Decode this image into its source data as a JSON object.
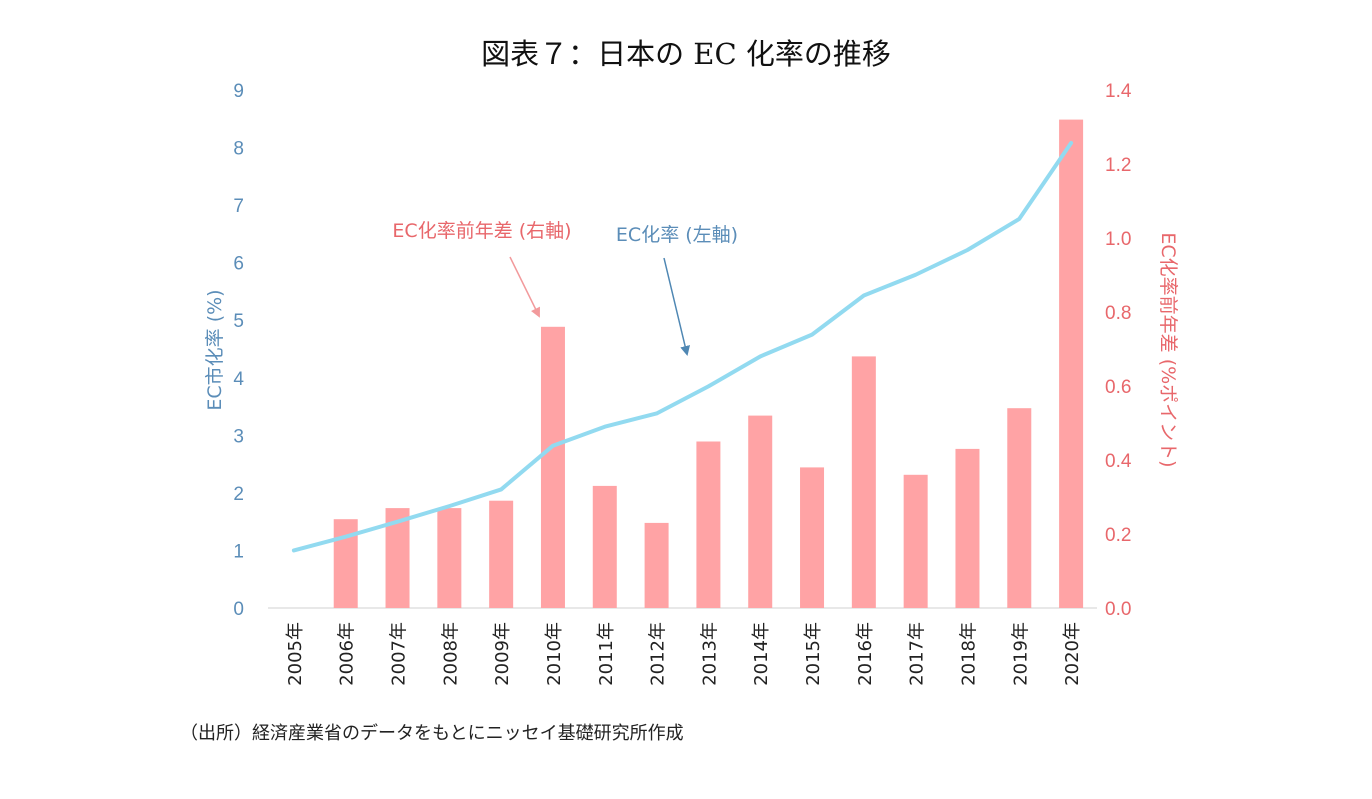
{
  "chart_data": {
    "type": "bar+line",
    "title": "図表７：日本の EC 化率の推移",
    "categories": [
      "2005年",
      "2006年",
      "2007年",
      "2008年",
      "2009年",
      "2010年",
      "2011年",
      "2012年",
      "2013年",
      "2014年",
      "2015年",
      "2016年",
      "2017年",
      "2018年",
      "2019年",
      "2020年"
    ],
    "series": [
      {
        "name": "EC化率前年差 (右軸)",
        "kind": "bar",
        "axis": "right",
        "color": "#ffa3a5",
        "values": [
          null,
          0.24,
          0.27,
          0.27,
          0.29,
          0.76,
          0.33,
          0.23,
          0.45,
          0.52,
          0.38,
          0.68,
          0.36,
          0.43,
          0.54,
          1.32
        ]
      },
      {
        "name": "EC化率 (左軸)",
        "kind": "line",
        "axis": "left",
        "color": "#92daf0",
        "values": [
          1.0,
          1.24,
          1.5,
          1.77,
          2.06,
          2.82,
          3.15,
          3.38,
          3.85,
          4.37,
          4.75,
          5.43,
          5.79,
          6.22,
          6.76,
          8.08
        ]
      }
    ],
    "y_left": {
      "label": "EC市化率 (%)",
      "ylim": [
        0,
        9
      ],
      "ticks": [
        "0",
        "1",
        "2",
        "3",
        "4",
        "5",
        "6",
        "7",
        "8",
        "9"
      ],
      "color": "#5b8db8"
    },
    "y_right": {
      "label": "EC化率前年差 (%ポイント)",
      "ylim": [
        0,
        1.4
      ],
      "ticks": [
        "0.0",
        "0.2",
        "0.4",
        "0.6",
        "0.8",
        "1.0",
        "1.2",
        "1.4"
      ],
      "color": "#e8676b"
    },
    "annotations": [
      {
        "text": "EC化率前年差 (右軸)",
        "color": "#e8676b",
        "arrow_to_category": "2010年",
        "arrow_to_axis": "right",
        "arrow_to_value": 0.76
      },
      {
        "text": "EC化率 (左軸)",
        "color": "#5b8db8",
        "arrow_to_category": "2013年",
        "arrow_to_axis": "left",
        "arrow_to_value": 4.5
      }
    ],
    "grid": false,
    "legend": "none"
  },
  "source": "（出所）経済産業省のデータをもとにニッセイ基礎研究所作成"
}
